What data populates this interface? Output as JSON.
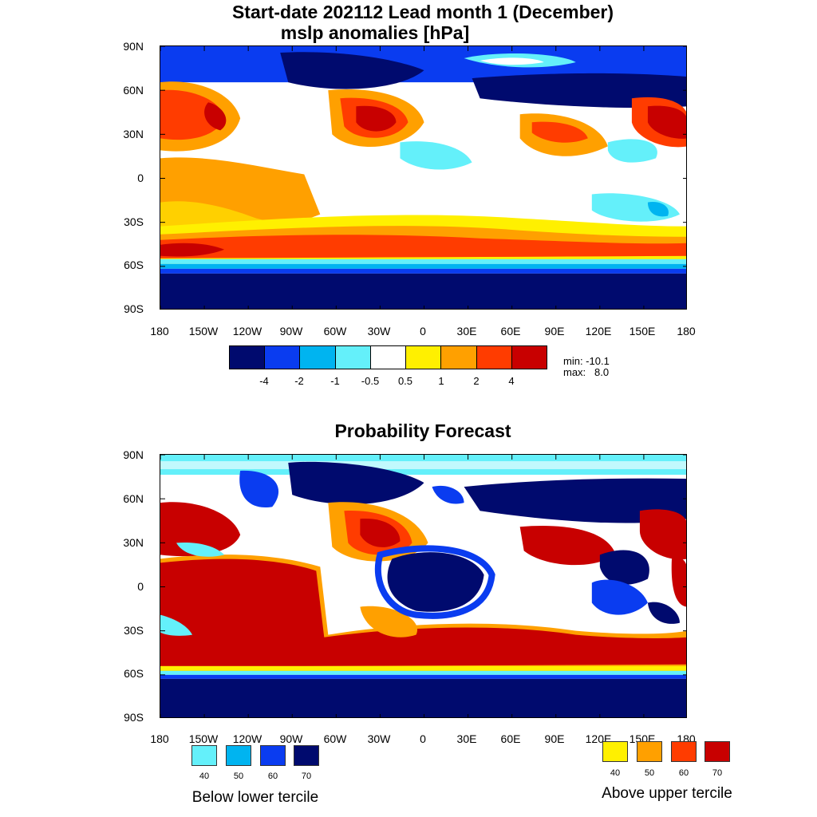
{
  "top_panel": {
    "title_line1": "Start-date 202112 Lead month 1 (December)",
    "title_line2": "mslp anomalies [hPa]",
    "lat_labels": [
      "90N",
      "60N",
      "30N",
      "0",
      "30S",
      "60S",
      "90S"
    ],
    "lon_labels": [
      "180",
      "150W",
      "120W",
      "90W",
      "60W",
      "30W",
      "0",
      "30E",
      "60E",
      "90E",
      "120E",
      "150E",
      "180"
    ],
    "colorbar": {
      "colors": [
        "#000a6e",
        "#0a3cf0",
        "#00b4f0",
        "#64f0fa",
        "#ffffff",
        "#fff000",
        "#ffa000",
        "#ff3c00",
        "#c80000"
      ],
      "labels": [
        "-4",
        "-2",
        "-1",
        "-0.5",
        "0.5",
        "1",
        "2",
        "4"
      ]
    },
    "min_text": "min: -10.1",
    "max_text": "max:   8.0"
  },
  "bottom_panel": {
    "title": "Probability Forecast",
    "lat_labels": [
      "90N",
      "60N",
      "30N",
      "0",
      "30S",
      "60S",
      "90S"
    ],
    "lon_labels": [
      "180",
      "150W",
      "120W",
      "90W",
      "60W",
      "30W",
      "0",
      "30E",
      "60E",
      "90E",
      "120E",
      "150E",
      "180"
    ],
    "below_legend": {
      "colors": [
        "#64f0fa",
        "#00b4f0",
        "#0a3cf0",
        "#000a6e"
      ],
      "labels": [
        "40",
        "50",
        "60",
        "70"
      ],
      "title": "Below lower tercile"
    },
    "above_legend": {
      "colors": [
        "#fff000",
        "#ffa000",
        "#ff3c00",
        "#c80000"
      ],
      "labels": [
        "40",
        "50",
        "60",
        "70"
      ],
      "title": "Above upper tercile"
    }
  }
}
